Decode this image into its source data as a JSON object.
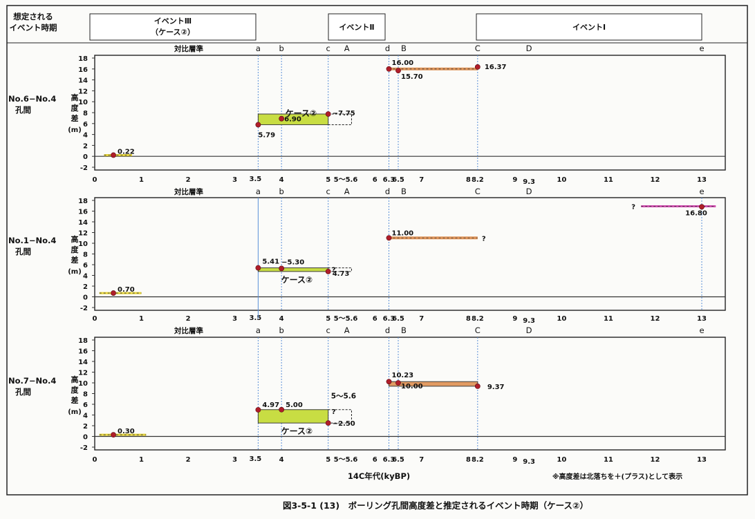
{
  "header": {
    "label": "想定される\nイベント時期",
    "events": [
      "イベントⅢ\n（ケース②）",
      "イベントⅡ",
      "イベントⅠ"
    ]
  },
  "horizons": [
    "a",
    "b",
    "c",
    "A",
    "d",
    "B",
    "C",
    "D",
    "e"
  ],
  "horizon_title": "対比層準",
  "x_ticks": [
    "0",
    "1",
    "2",
    "3",
    "4",
    "5",
    "6",
    "7",
    "8",
    "9",
    "10",
    "11",
    "12",
    "13"
  ],
  "x_special_labels": [
    "3.5",
    "5〜5.6",
    "6.3",
    "6.5",
    "8.2",
    "9.3"
  ],
  "xlabel": "14C年代(kyBP)",
  "ylabel": "高度差(m)",
  "note": "※高度差は北落ちを＋(プラス)として表示",
  "caption": "図3-5-1 (13)　ボーリング孔間高度差と推定されるイベント時期（ケース②）",
  "colors": {
    "green": "#c6dc3a",
    "orange": "#e0955a",
    "magenta": "#d04fb0",
    "yellow": "#e8d63a",
    "dot": "#b01e2a",
    "vline": "#5a8fd8"
  },
  "chart_data": [
    {
      "type": "scatter",
      "title": "No.6−No.4 孔間",
      "ylabel": "高度差(m)",
      "ylim": [
        -2,
        18
      ],
      "xlim": [
        0,
        13.5
      ],
      "yticks": [
        -2,
        0,
        2,
        4,
        6,
        8,
        10,
        12,
        14,
        16,
        18
      ],
      "points": [
        {
          "x": 0.4,
          "y": 0.22,
          "label": "0.22"
        },
        {
          "x": 3.5,
          "y": 5.79,
          "label": "5.79"
        },
        {
          "x": 4.0,
          "y": 6.9,
          "label": "6.90"
        },
        {
          "x": 5.0,
          "y": 7.75,
          "label": "7.75"
        },
        {
          "x": 6.3,
          "y": 16.0,
          "label": "16.00"
        },
        {
          "x": 6.5,
          "y": 15.7,
          "label": "15.70"
        },
        {
          "x": 8.2,
          "y": 16.37,
          "label": "16.37"
        }
      ],
      "segments": [
        {
          "x0": 0.2,
          "x1": 0.8,
          "y": 0.22,
          "color": "yellow"
        },
        {
          "x0": 6.3,
          "x1": 8.2,
          "y": 16.0,
          "color": "orange"
        }
      ],
      "boxes": [
        {
          "x0": 3.5,
          "x1": 5.0,
          "y0": 5.79,
          "y1": 7.75,
          "color": "green",
          "label": "ケース②",
          "dashed_to": 5.5
        }
      ],
      "vlines": [
        3.5,
        4.0,
        5.0,
        6.3,
        6.5,
        8.2
      ]
    },
    {
      "type": "scatter",
      "title": "No.1−No.4 孔間",
      "ylabel": "高度差(m)",
      "ylim": [
        -2,
        18
      ],
      "xlim": [
        0,
        13.5
      ],
      "yticks": [
        -2,
        0,
        2,
        4,
        6,
        8,
        10,
        12,
        14,
        16,
        18
      ],
      "points": [
        {
          "x": 0.4,
          "y": 0.7,
          "label": "0.70"
        },
        {
          "x": 3.5,
          "y": 5.41,
          "label": "5.41"
        },
        {
          "x": 4.0,
          "y": 5.3,
          "label": "5.30"
        },
        {
          "x": 5.0,
          "y": 4.73,
          "label": "4.73"
        },
        {
          "x": 6.3,
          "y": 11.0,
          "label": "11.00"
        },
        {
          "x": 13.0,
          "y": 16.8,
          "label": "16.80"
        }
      ],
      "segments": [
        {
          "x0": 0.1,
          "x1": 1.0,
          "y": 0.7,
          "color": "yellow"
        },
        {
          "x0": 6.3,
          "x1": 8.2,
          "y": 11.0,
          "color": "orange",
          "end_label": "?"
        },
        {
          "x0": 11.7,
          "x1": 13.3,
          "y": 16.9,
          "color": "magenta",
          "start_label": "?"
        }
      ],
      "boxes": [
        {
          "x0": 3.5,
          "x1": 5.0,
          "y0": 4.73,
          "y1": 5.41,
          "color": "green",
          "label": "ケース②",
          "dashed_to": 5.5,
          "mark": "?"
        }
      ],
      "vlines": [
        3.5,
        4.0,
        5.0,
        6.3,
        13.0
      ]
    },
    {
      "type": "scatter",
      "title": "No.7−No.4 孔間",
      "ylabel": "高度差(m)",
      "ylim": [
        -2,
        18
      ],
      "xlim": [
        0,
        13.5
      ],
      "yticks": [
        -2,
        0,
        2,
        4,
        6,
        8,
        10,
        12,
        14,
        16,
        18
      ],
      "points": [
        {
          "x": 0.4,
          "y": 0.3,
          "label": "0.30"
        },
        {
          "x": 3.5,
          "y": 4.97,
          "label": "4.97"
        },
        {
          "x": 4.0,
          "y": 5.0,
          "label": "5.00"
        },
        {
          "x": 5.0,
          "y": 2.5,
          "label": "2.50"
        },
        {
          "x": 6.3,
          "y": 10.23,
          "label": "10.23"
        },
        {
          "x": 6.5,
          "y": 10.0,
          "label": "10.00"
        },
        {
          "x": 8.2,
          "y": 9.37,
          "label": "9.37"
        }
      ],
      "segments": [
        {
          "x0": 0.1,
          "x1": 1.1,
          "y": 0.3,
          "color": "yellow"
        }
      ],
      "boxes": [
        {
          "x0": 3.5,
          "x1": 5.0,
          "y0": 2.5,
          "y1": 5.0,
          "color": "green",
          "label": "ケース②",
          "dashed_to": 5.5,
          "mark": "?"
        },
        {
          "x0": 6.3,
          "x1": 8.2,
          "y0": 9.37,
          "y1": 10.23,
          "color": "orange"
        }
      ],
      "annotation": {
        "x": 5.0,
        "y": 7.6,
        "text": "5〜5.6"
      },
      "vlines": [
        3.5,
        4.0,
        5.0,
        6.3,
        6.5,
        8.2
      ]
    }
  ]
}
